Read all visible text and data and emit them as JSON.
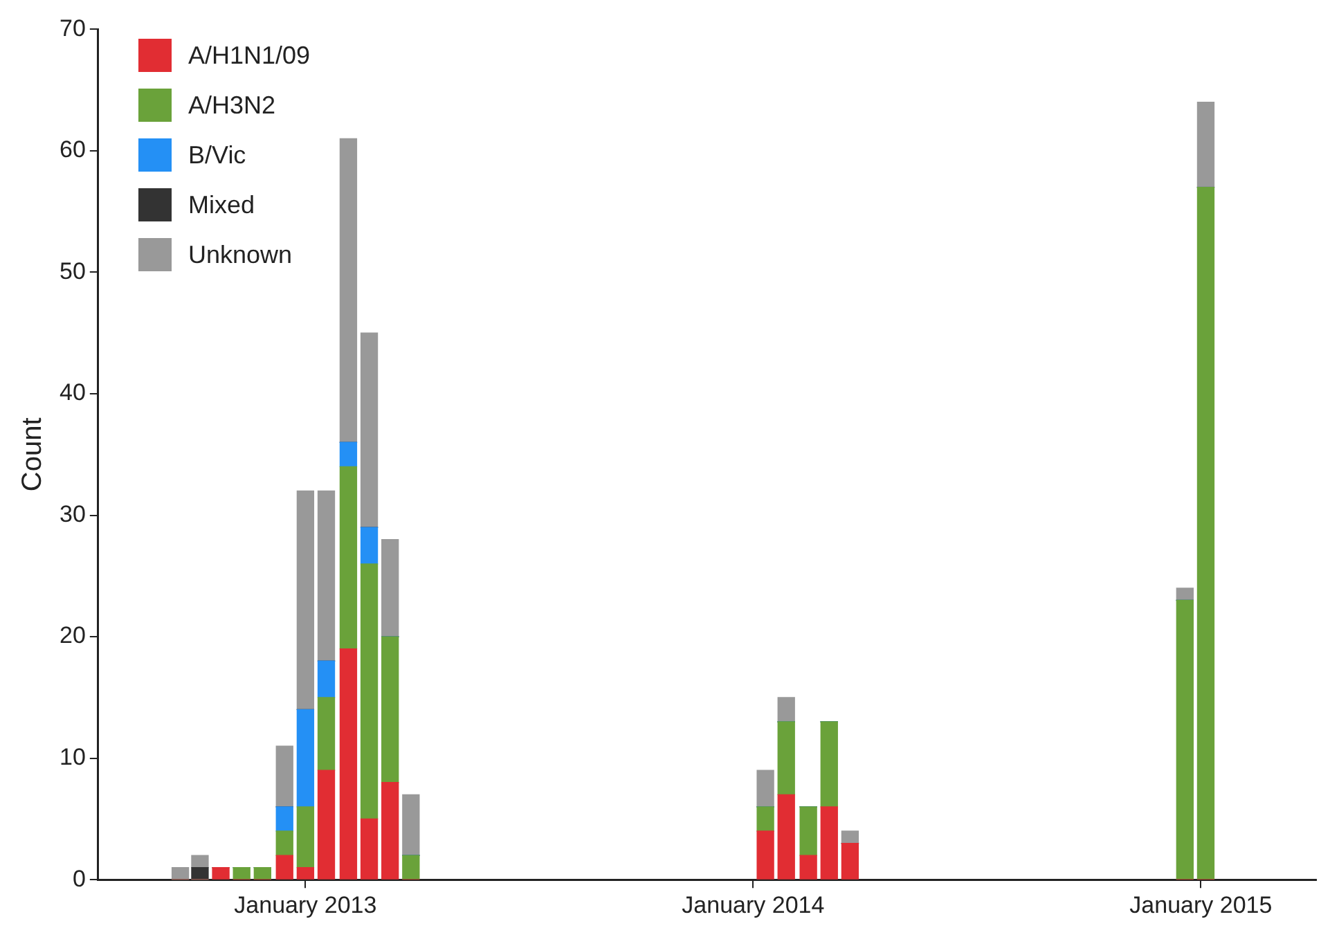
{
  "chart_data": {
    "type": "bar",
    "stacked": true,
    "ylabel": "Count",
    "legend": "top left",
    "grid": false,
    "x": [
      "2012-09-21",
      "2012-10-07",
      "2012-10-24",
      "2012-11-10",
      "2012-11-27",
      "2012-12-15",
      "2013-01-01",
      "2013-01-18",
      "2013-02-05",
      "2013-02-22",
      "2013-03-11",
      "2013-03-28",
      "2014-01-11",
      "2014-01-28",
      "2014-02-15",
      "2014-03-04",
      "2014-03-21",
      "2014-12-19",
      "2015-01-05"
    ],
    "xlim": [
      "2012-07-16",
      "2015-04-05"
    ],
    "xticks": [
      {
        "value": "2013-01-01",
        "label": "January 2013"
      },
      {
        "value": "2014-01-01",
        "label": "January 2014"
      },
      {
        "value": "2015-01-01",
        "label": "January 2015"
      }
    ],
    "ylim": [
      0,
      70
    ],
    "yticks": [
      0,
      10,
      20,
      30,
      40,
      50,
      60,
      70
    ],
    "series": [
      {
        "name": "A/H1N1/09",
        "color": "#e12d33",
        "values": [
          0,
          0,
          1,
          0,
          0,
          2,
          1,
          9,
          19,
          5,
          8,
          0,
          4,
          7,
          2,
          6,
          3,
          0,
          0
        ]
      },
      {
        "name": "A/H3N2",
        "color": "#6aa23a",
        "values": [
          0,
          0,
          0,
          1,
          1,
          2,
          5,
          6,
          15,
          21,
          12,
          2,
          2,
          6,
          4,
          7,
          0,
          23,
          57
        ]
      },
      {
        "name": "B/Vic",
        "color": "#2490f5",
        "values": [
          0,
          0,
          0,
          0,
          0,
          2,
          8,
          3,
          2,
          3,
          0,
          0,
          0,
          0,
          0,
          0,
          0,
          0,
          0
        ]
      },
      {
        "name": "Mixed",
        "color": "#333333",
        "values": [
          0,
          1,
          0,
          0,
          0,
          0,
          0,
          0,
          0,
          0,
          0,
          0,
          0,
          0,
          0,
          0,
          0,
          0,
          0
        ]
      },
      {
        "name": "Unknown",
        "color": "#999999",
        "values": [
          1,
          1,
          0,
          0,
          0,
          5,
          18,
          14,
          25,
          16,
          8,
          5,
          3,
          2,
          0,
          0,
          1,
          1,
          7
        ]
      }
    ]
  }
}
